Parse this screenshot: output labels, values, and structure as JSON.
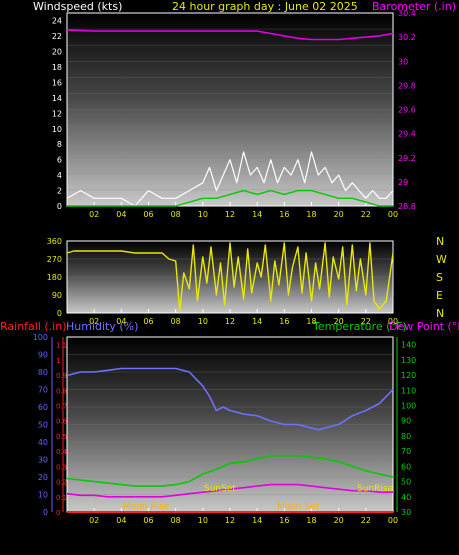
{
  "title": "24 hour graph day : June 02 2025",
  "colors": {
    "background": "#000000",
    "yellow": "#e8e800",
    "magenta": "#ff00ff",
    "purple": "#c040ff",
    "green": "#00cc00",
    "blue": "#6060ff",
    "red": "#ff2020",
    "white": "#ffffff"
  },
  "chart_data": [
    {
      "type": "line",
      "panel": "wind-pressure",
      "title": "24 hour graph day : June 02 2025",
      "left_axis_label": "Windspeed (kts)",
      "right_axis_label": "Barometer (.in)",
      "x_ticks": [
        "02",
        "04",
        "06",
        "08",
        "10",
        "12",
        "14",
        "16",
        "18",
        "20",
        "22",
        "00"
      ],
      "left_ticks": [
        "0",
        "2",
        "4",
        "6",
        "8",
        "10",
        "12",
        "14",
        "16",
        "18",
        "20",
        "22",
        "24"
      ],
      "right_ticks": [
        "28.8",
        "29",
        "29.2",
        "29.4",
        "29.6",
        "29.8",
        "30",
        "30.2",
        "30.4"
      ],
      "ylim_left": [
        0,
        25
      ],
      "ylim_right": [
        28.8,
        30.4
      ],
      "series": [
        {
          "name": "Barometer (.in)",
          "axis": "right",
          "color": "#e000e0",
          "x": [
            0,
            2,
            4,
            6,
            8,
            10,
            12,
            14,
            15,
            16,
            17,
            18,
            19,
            20,
            21,
            22,
            23,
            24
          ],
          "y": [
            30.26,
            30.25,
            30.25,
            30.25,
            30.25,
            30.25,
            30.25,
            30.25,
            30.23,
            30.21,
            30.19,
            30.18,
            30.18,
            30.18,
            30.19,
            30.2,
            30.21,
            30.23
          ]
        },
        {
          "name": "Windspeed gust",
          "axis": "left",
          "color": "#ffffff",
          "x": [
            0,
            1,
            2,
            3,
            4,
            5,
            5.5,
            6,
            7,
            8,
            9,
            10,
            10.5,
            11,
            11.5,
            12,
            12.5,
            13,
            13.5,
            14,
            14.5,
            15,
            15.5,
            16,
            16.5,
            17,
            17.5,
            18,
            18.5,
            19,
            19.5,
            20,
            20.5,
            21,
            21.5,
            22,
            22.5,
            23,
            23.5,
            24
          ],
          "y": [
            1,
            2,
            1,
            1,
            1,
            0,
            1,
            2,
            1,
            1,
            2,
            3,
            5,
            2,
            4,
            6,
            3,
            7,
            4,
            5,
            3,
            6,
            3,
            5,
            4,
            6,
            3,
            7,
            4,
            5,
            3,
            4,
            2,
            3,
            2,
            1,
            2,
            1,
            1,
            2
          ]
        },
        {
          "name": "Windspeed average",
          "axis": "left",
          "color": "#00cc00",
          "x": [
            0,
            2,
            4,
            6,
            8,
            10,
            11,
            12,
            13,
            14,
            15,
            16,
            17,
            18,
            19,
            20,
            21,
            22,
            23,
            24
          ],
          "y": [
            0,
            0,
            0,
            0,
            0,
            1,
            1,
            1.5,
            2,
            1.5,
            2,
            1.5,
            2,
            2,
            1.5,
            1,
            1,
            0.5,
            0,
            0
          ]
        }
      ]
    },
    {
      "type": "line",
      "panel": "wind-direction",
      "x_ticks": [
        "02",
        "04",
        "06",
        "08",
        "10",
        "12",
        "14",
        "16",
        "18",
        "20",
        "22",
        "00"
      ],
      "left_ticks": [
        "0",
        "90",
        "180",
        "270",
        "360"
      ],
      "right_labels": [
        "N",
        "W",
        "S",
        "E",
        "N"
      ],
      "ylim": [
        0,
        360
      ],
      "series": [
        {
          "name": "Wind direction",
          "color": "#e8e800",
          "x": [
            0,
            0.5,
            1,
            2,
            3,
            4,
            5,
            6,
            7,
            7.5,
            8,
            8.3,
            8.6,
            9,
            9.3,
            9.6,
            10,
            10.3,
            10.6,
            11,
            11.3,
            11.6,
            12,
            12.3,
            12.6,
            13,
            13.3,
            13.6,
            14,
            14.3,
            14.6,
            15,
            15.3,
            15.6,
            16,
            16.3,
            16.6,
            17,
            17.3,
            17.6,
            18,
            18.3,
            18.6,
            19,
            19.3,
            19.6,
            20,
            20.3,
            20.6,
            21,
            21.3,
            21.6,
            22,
            22.3,
            22.6,
            23,
            23.5,
            24
          ],
          "y": [
            300,
            310,
            310,
            310,
            310,
            310,
            300,
            300,
            300,
            270,
            260,
            10,
            200,
            120,
            340,
            60,
            280,
            150,
            330,
            90,
            250,
            40,
            350,
            130,
            280,
            70,
            320,
            100,
            250,
            180,
            340,
            60,
            260,
            140,
            350,
            90,
            230,
            330,
            100,
            300,
            60,
            250,
            120,
            350,
            80,
            280,
            170,
            330,
            40,
            340,
            110,
            270,
            90,
            350,
            60,
            20,
            60,
            300
          ]
        }
      ]
    },
    {
      "type": "line",
      "panel": "humidity-temperature",
      "left_axis_label": "Rainfall (.in)",
      "left_axis_label_2": "Humidity (%)",
      "right_axis_label": "Temperature (°F)",
      "right_axis_label_2": "Dew Point (°F)",
      "x_ticks": [
        "02",
        "04",
        "06",
        "08",
        "10",
        "12",
        "14",
        "16",
        "18",
        "20",
        "22",
        "00"
      ],
      "humidity_ticks": [
        "0",
        "10",
        "20",
        "30",
        "40",
        "50",
        "60",
        "70",
        "80",
        "90",
        "100"
      ],
      "rain_ticks": [
        "0",
        "0.1",
        "0.2",
        "0.3",
        "0.4",
        "0.5",
        "0.6",
        "0.7",
        "0.8",
        "0.9",
        "1",
        "1.1"
      ],
      "temp_ticks": [
        "30",
        "40",
        "50",
        "60",
        "70",
        "80",
        "90",
        "100",
        "110",
        "120",
        "130",
        "140"
      ],
      "ylim_humidity": [
        0,
        100
      ],
      "ylim_rain": [
        0,
        1.15
      ],
      "ylim_temp": [
        30,
        145
      ],
      "annotations": [
        "SunSet",
        "SunRise",
        "Moon Rise",
        "Moon Set"
      ],
      "series": [
        {
          "name": "Humidity (%)",
          "axis": "humidity",
          "color": "#7070ff",
          "x": [
            0,
            1,
            2,
            3,
            4,
            5,
            6,
            7,
            8,
            9,
            10,
            10.5,
            11,
            11.5,
            12,
            13,
            14,
            15,
            16,
            17,
            18,
            18.5,
            19,
            20,
            21,
            22,
            23,
            24
          ],
          "y": [
            78,
            80,
            80,
            81,
            82,
            82,
            82,
            82,
            82,
            80,
            72,
            66,
            58,
            60,
            58,
            56,
            55,
            52,
            50,
            50,
            48,
            47,
            48,
            50,
            55,
            58,
            62,
            70
          ]
        },
        {
          "name": "Temperature (°F)",
          "axis": "temp",
          "color": "#00cc00",
          "x": [
            0,
            1,
            2,
            3,
            4,
            5,
            6,
            7,
            8,
            9,
            10,
            11,
            12,
            13,
            14,
            15,
            16,
            17,
            18,
            19,
            20,
            21,
            22,
            23,
            24
          ],
          "y": [
            52,
            51,
            50,
            49,
            48,
            47,
            47,
            47,
            48,
            50,
            55,
            58,
            62,
            63,
            65,
            67,
            67,
            67,
            66,
            65,
            63,
            60,
            57,
            55,
            53
          ]
        },
        {
          "name": "Dew Point (°F)",
          "axis": "temp",
          "color": "#e000e0",
          "x": [
            0,
            1,
            2,
            3,
            4,
            5,
            6,
            7,
            8,
            9,
            10,
            11,
            12,
            13,
            14,
            15,
            16,
            17,
            18,
            19,
            20,
            21,
            22,
            23,
            24
          ],
          "y": [
            42,
            41,
            41,
            40,
            40,
            40,
            40,
            40,
            41,
            42,
            43,
            44,
            45,
            46,
            47,
            48,
            48,
            48,
            47,
            46,
            45,
            44,
            44,
            43,
            43
          ]
        },
        {
          "name": "Rainfall (.in)",
          "axis": "rain",
          "color": "#ff2020",
          "x": [
            0,
            24
          ],
          "y": [
            0,
            0
          ]
        }
      ]
    }
  ]
}
